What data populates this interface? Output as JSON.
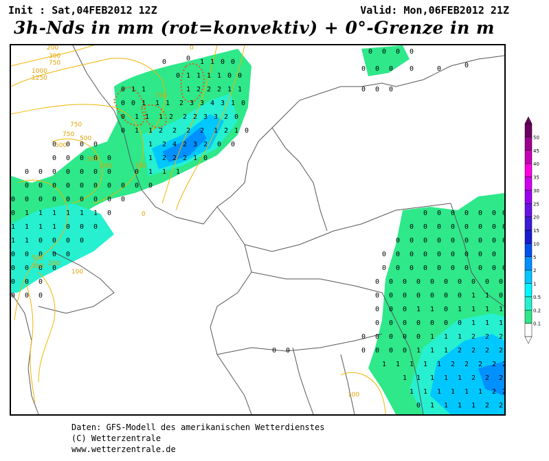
{
  "header": {
    "init": "Init : Sat,04FEB2012 12Z",
    "valid": "Valid: Mon,06FEB2012 21Z",
    "title": "3h-Nds in mm (rot=konvektiv) + 0°-Grenze in m"
  },
  "legend": {
    "levels": [
      "0.1",
      "0.2",
      "0.5",
      "1",
      "2",
      "5",
      "10",
      "15",
      "20",
      "25",
      "30",
      "35",
      "40",
      "45",
      "50"
    ],
    "colors": [
      "#ffffff",
      "#2ee88a",
      "#26f0d0",
      "#00f7ff",
      "#00c8ff",
      "#0090ff",
      "#0050ee",
      "#1a1ad0",
      "#3b1ad8",
      "#6a10e6",
      "#9a00f0",
      "#d000f0",
      "#ff00e0",
      "#c800b4",
      "#9c0090",
      "#6a0060"
    ]
  },
  "map": {
    "snow_line_labels": [
      "200",
      "300",
      "750",
      "1000",
      "1250",
      "500",
      "750",
      "500",
      "300",
      "200",
      "750",
      "750",
      "750",
      "500",
      "300",
      "200",
      "100",
      "100",
      "0",
      "0"
    ],
    "value_symbols": [
      "0",
      "1",
      "2",
      "3",
      "4"
    ],
    "colors": {
      "precip_light": "#2ee88a",
      "precip_mid": "#00f7ff",
      "precip_heavy": "#00c8ff",
      "precip_strong": "#0090ff",
      "snowline": "#f0b400",
      "border": "#555555",
      "convective": "#e05a10"
    }
  },
  "footer": {
    "line1": "Daten: GFS-Modell des amerikanischen Wetterdienstes",
    "line2": "(C) Wetterzentrale",
    "line3": "www.wetterzentrale.de"
  }
}
